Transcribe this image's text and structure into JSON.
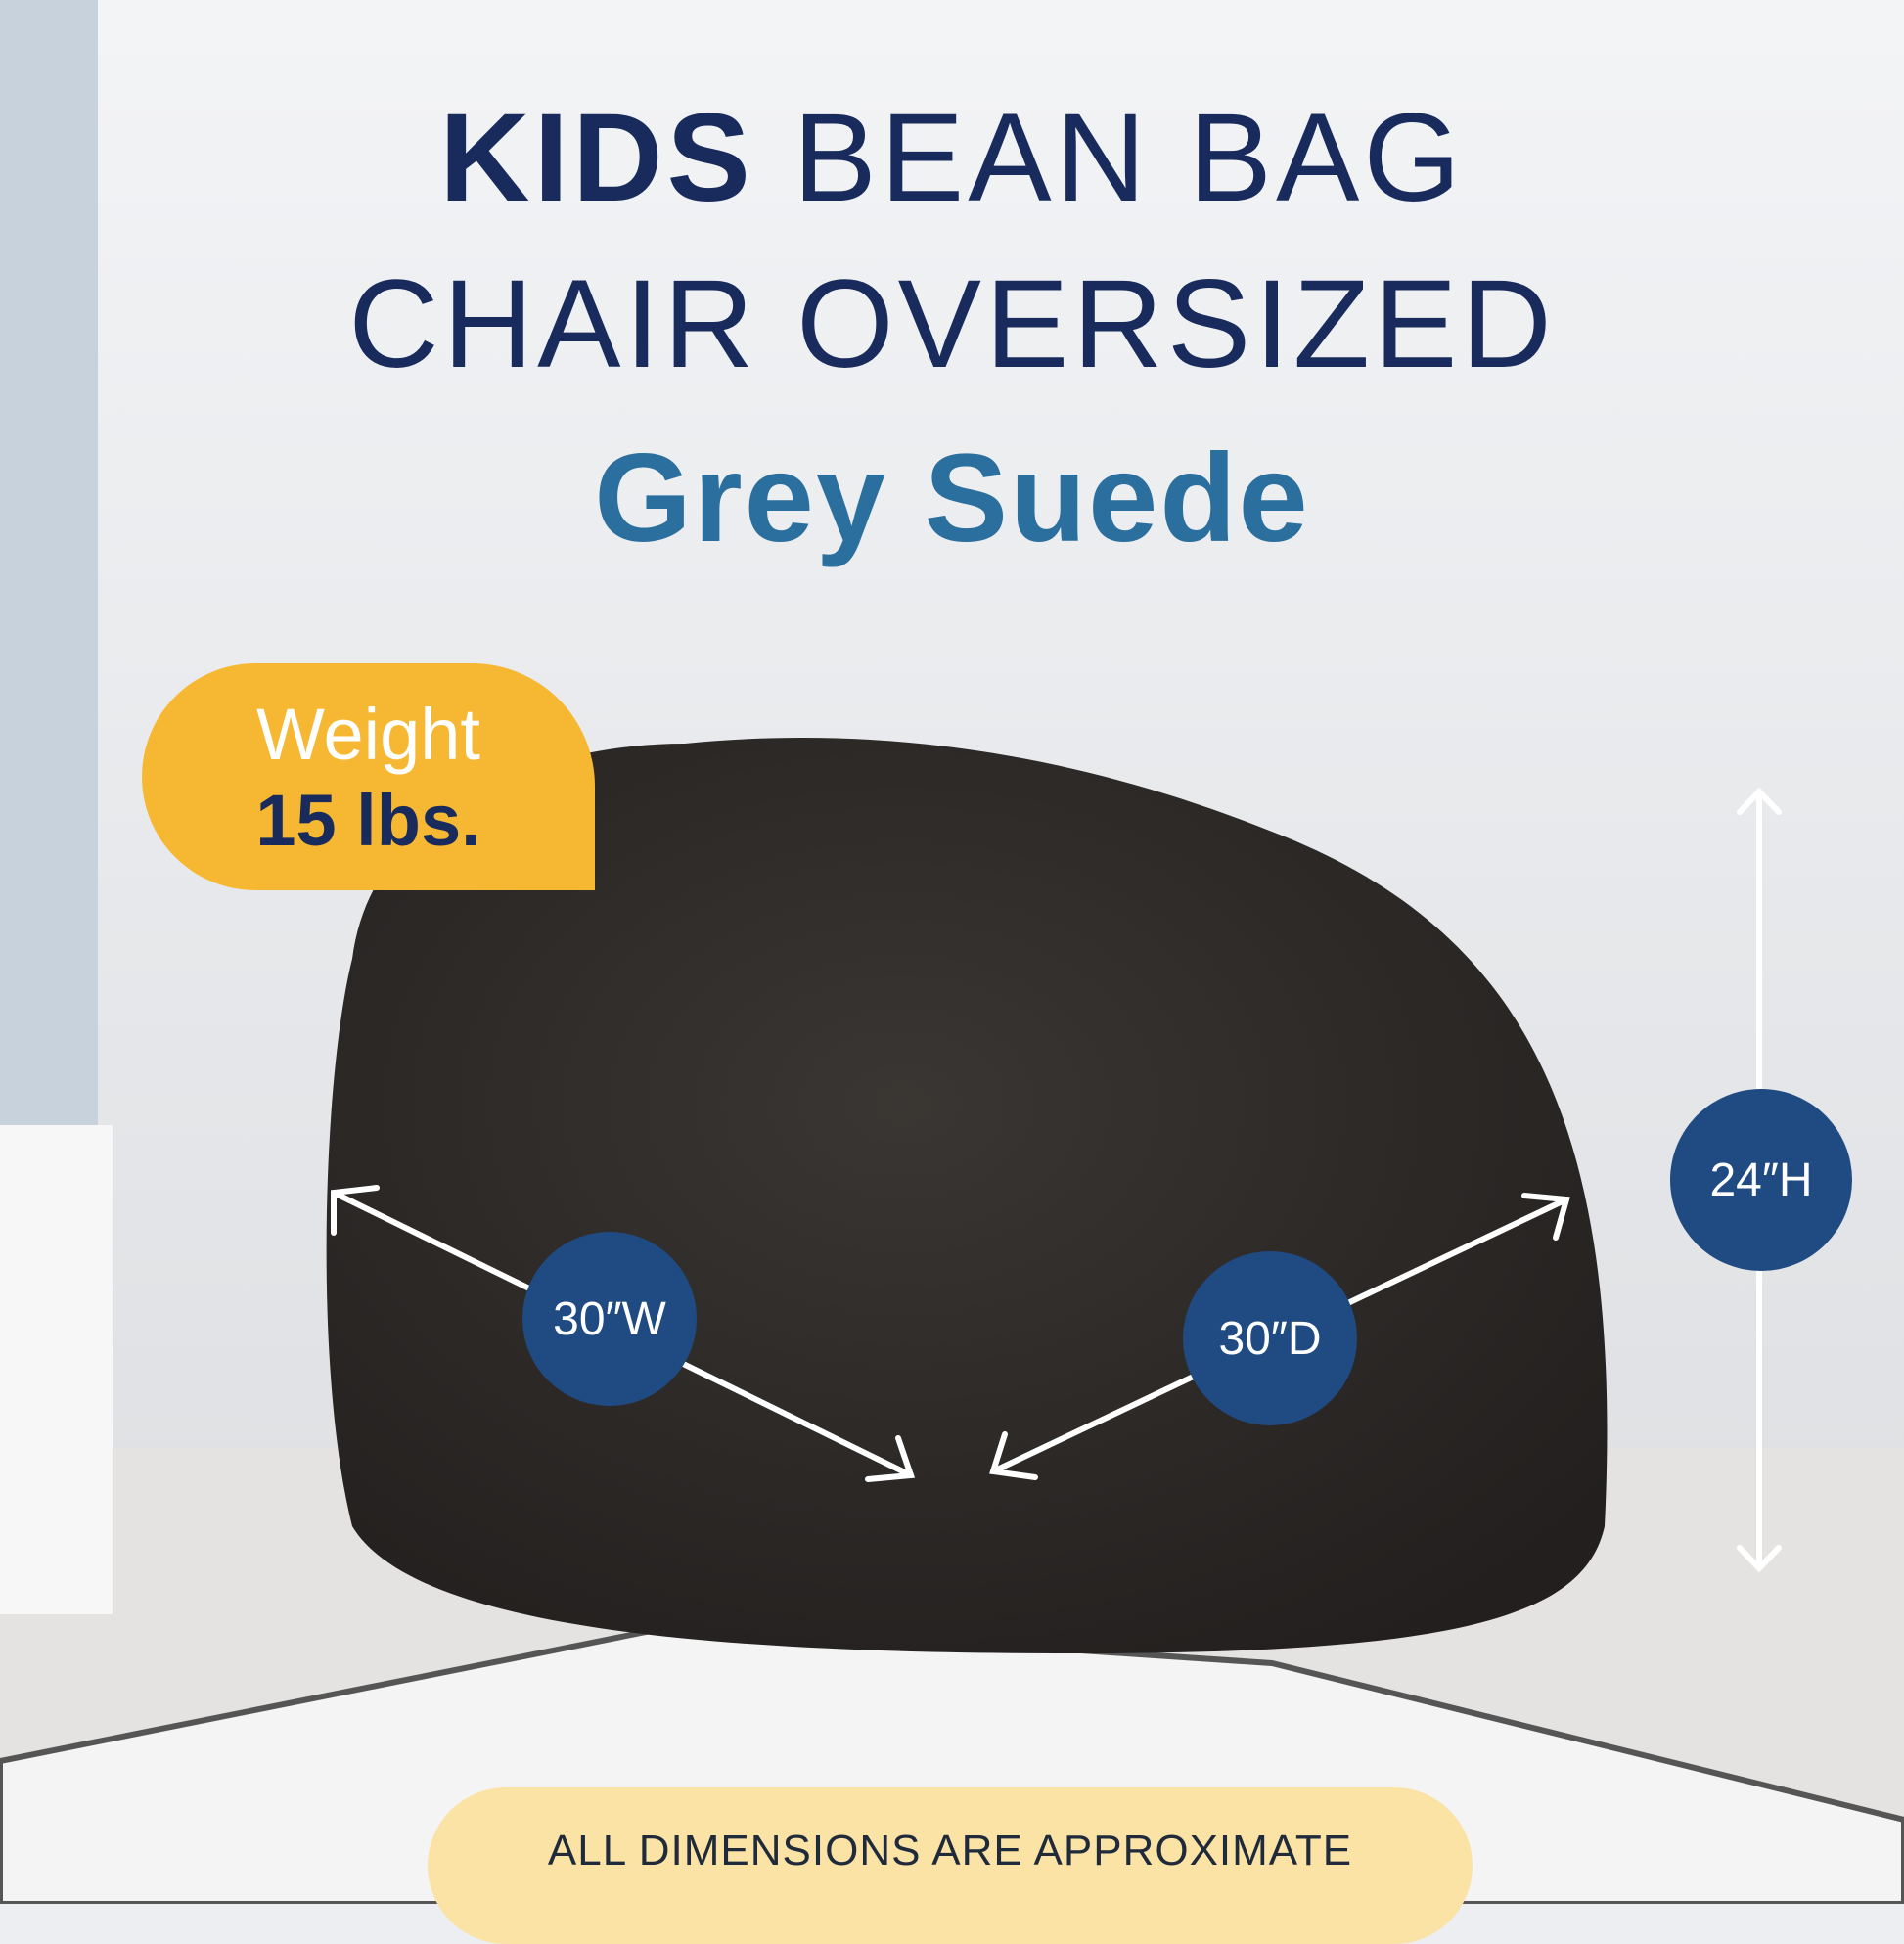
{
  "title": {
    "bold": "KIDS",
    "line1_rest": " BEAN BAG",
    "line2": "CHAIR OVERSIZED",
    "line3": "Grey Suede"
  },
  "weight_badge": {
    "label": "Weight",
    "value": "15 lbs."
  },
  "dimensions": {
    "width": "30″W",
    "depth": "30″D",
    "height": "24″H"
  },
  "note": "ALL DIMENSIONS ARE APPROXIMATE",
  "colors": {
    "title": "#182b5c",
    "subtitle": "#2b6f9f",
    "badge": "#f6b832",
    "dimension_circle": "#1f4b82",
    "note_bg": "#fbe2a5",
    "bean_bag": "#2f2b29"
  }
}
